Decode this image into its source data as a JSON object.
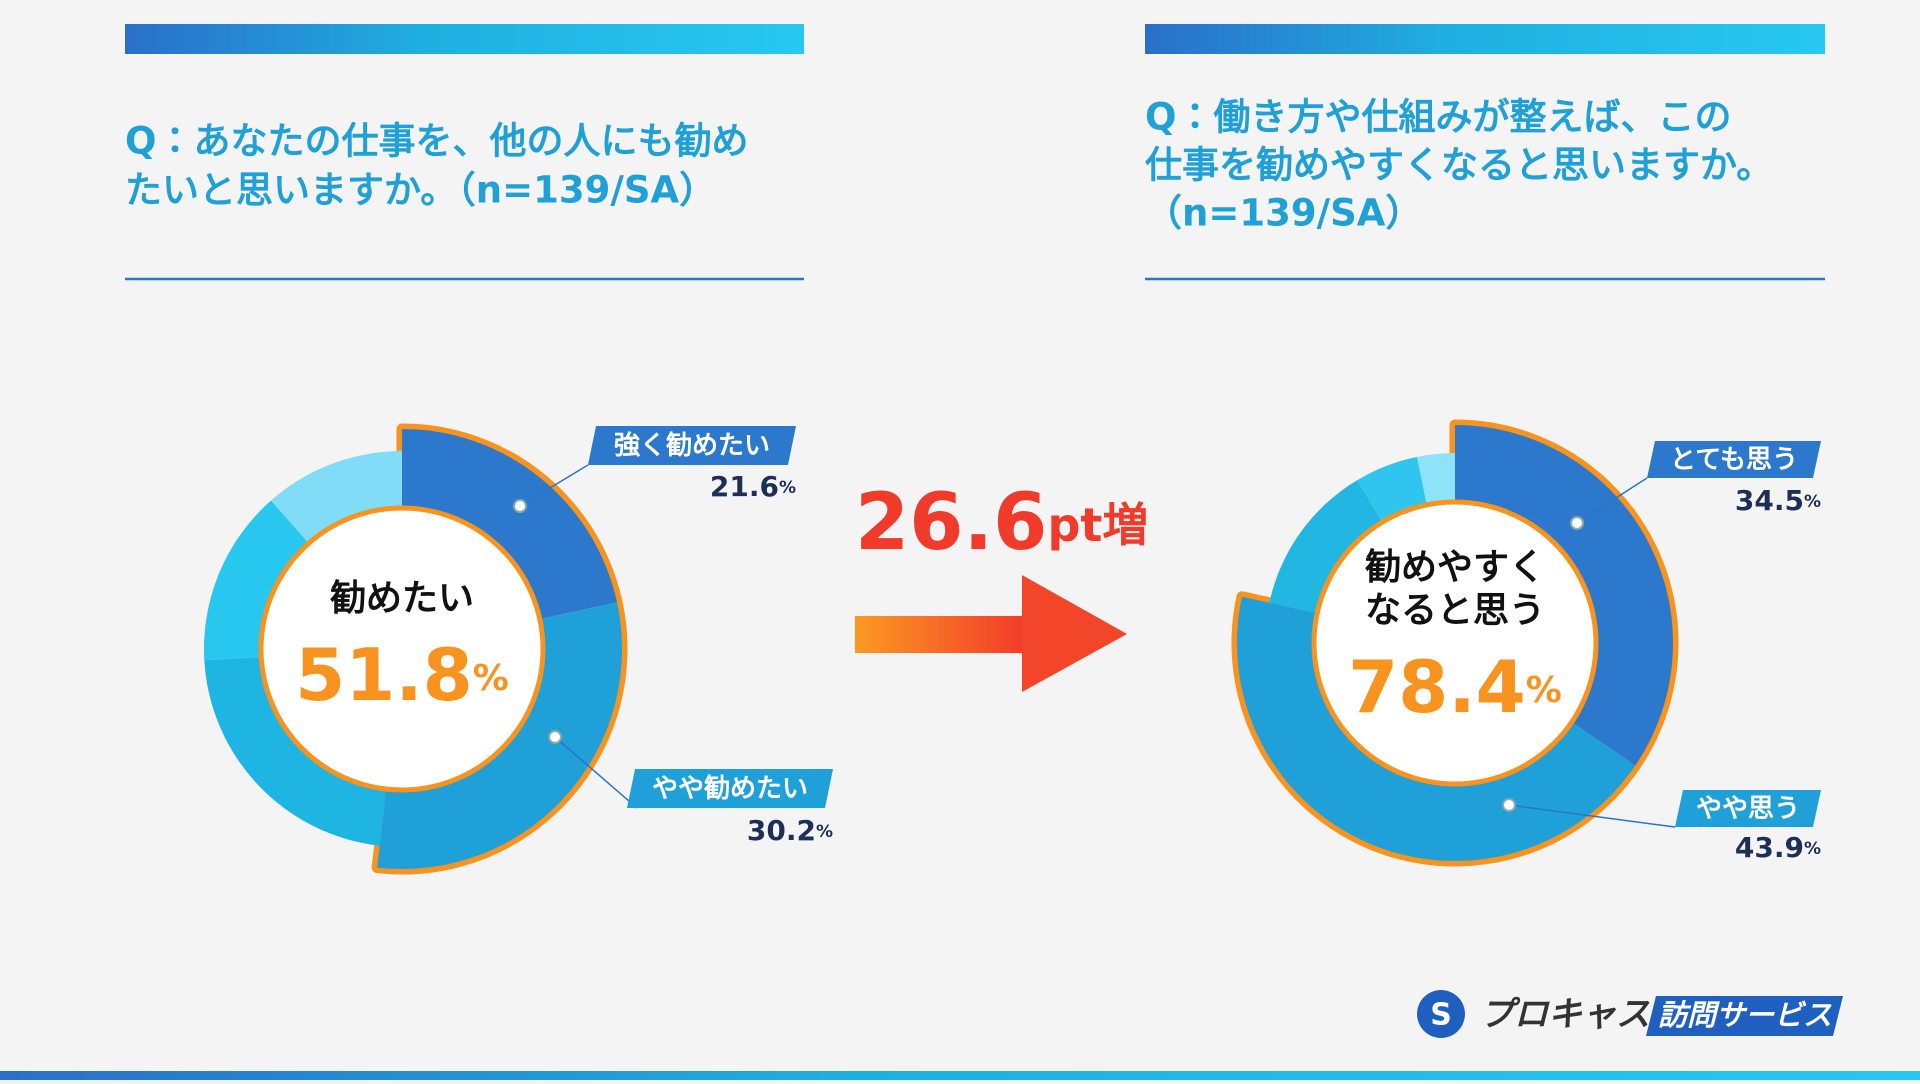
{
  "header_left": {
    "lines": [
      "Q：あなたの仕事を、他の人にも勧め",
      "たいと思いますか。（n=139/SA）"
    ]
  },
  "header_right": {
    "lines": [
      "Q：働き方や仕組みが整えば、この",
      "仕事を勧めやすくなると思いますか。",
      "（n=139/SA）"
    ]
  },
  "chart_data": [
    {
      "type": "donut",
      "center_lines": [
        "勧めたい"
      ],
      "center_value": 51.8,
      "center_value_label": "51.8%",
      "categories": [
        "強く勧めたい",
        "やや勧めたい",
        null,
        null,
        null
      ],
      "values": [
        21.6,
        30.2,
        22.3,
        14.4,
        11.5
      ],
      "value_labels": [
        "21.6%",
        "30.2%",
        null,
        null,
        null
      ],
      "colors": [
        "#2b78cc",
        "#20a0d8",
        "#1fb5e2",
        "#28c7ef",
        "#80dcf7"
      ],
      "highlighted": [
        true,
        true,
        false,
        false,
        false
      ]
    },
    {
      "type": "donut",
      "center_lines": [
        "勧めやすく",
        "なると思う"
      ],
      "center_value": 78.4,
      "center_value_label": "78.4%",
      "categories": [
        "とても思う",
        "やや思う",
        null,
        null,
        null
      ],
      "values": [
        34.5,
        43.9,
        13.0,
        5.4,
        3.2
      ],
      "value_labels": [
        "34.5%",
        "43.9%",
        null,
        null,
        null
      ],
      "colors": [
        "#2b78cc",
        "#20a0d8",
        "#22b6e2",
        "#2fc5ee",
        "#8fe3f8"
      ],
      "highlighted": [
        true,
        true,
        false,
        false,
        false
      ]
    }
  ],
  "annotation": {
    "text": "26.6pt増"
  },
  "logo": {
    "brand": "プロキャス",
    "service": "訪問サービス"
  }
}
